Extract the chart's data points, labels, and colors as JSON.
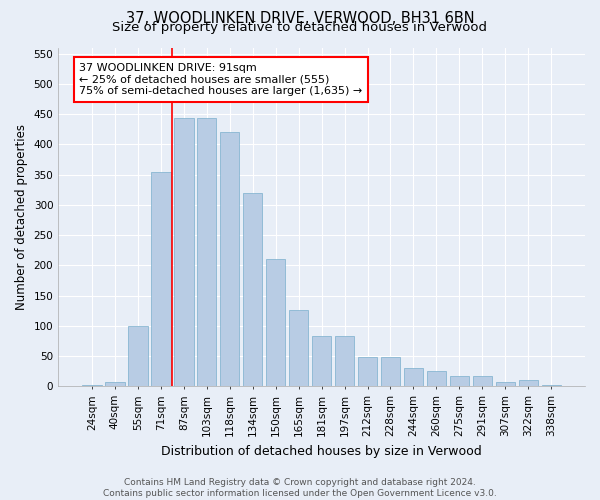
{
  "title": "37, WOODLINKEN DRIVE, VERWOOD, BH31 6BN",
  "subtitle": "Size of property relative to detached houses in Verwood",
  "xlabel": "Distribution of detached houses by size in Verwood",
  "ylabel": "Number of detached properties",
  "categories": [
    "24sqm",
    "40sqm",
    "55sqm",
    "71sqm",
    "87sqm",
    "103sqm",
    "118sqm",
    "134sqm",
    "150sqm",
    "165sqm",
    "181sqm",
    "197sqm",
    "212sqm",
    "228sqm",
    "244sqm",
    "260sqm",
    "275sqm",
    "291sqm",
    "307sqm",
    "322sqm",
    "338sqm"
  ],
  "values": [
    3,
    8,
    100,
    355,
    443,
    443,
    420,
    320,
    210,
    127,
    83,
    83,
    48,
    48,
    30,
    25,
    18,
    18,
    7,
    10,
    3
  ],
  "bar_color": "#b8cce4",
  "bar_edge_color": "#7aafcc",
  "vline_color": "red",
  "vline_x_index": 4,
  "annotation_box_text": "37 WOODLINKEN DRIVE: 91sqm\n← 25% of detached houses are smaller (555)\n75% of semi-detached houses are larger (1,635) →",
  "ylim": [
    0,
    560
  ],
  "yticks": [
    0,
    50,
    100,
    150,
    200,
    250,
    300,
    350,
    400,
    450,
    500,
    550
  ],
  "footer_text": "Contains HM Land Registry data © Crown copyright and database right 2024.\nContains public sector information licensed under the Open Government Licence v3.0.",
  "background_color": "#e8eef7",
  "plot_bg_color": "#e8eef7",
  "grid_color": "#ffffff",
  "title_fontsize": 10.5,
  "subtitle_fontsize": 9.5,
  "xlabel_fontsize": 9,
  "ylabel_fontsize": 8.5,
  "tick_fontsize": 7.5,
  "annotation_fontsize": 8,
  "footer_fontsize": 6.5
}
